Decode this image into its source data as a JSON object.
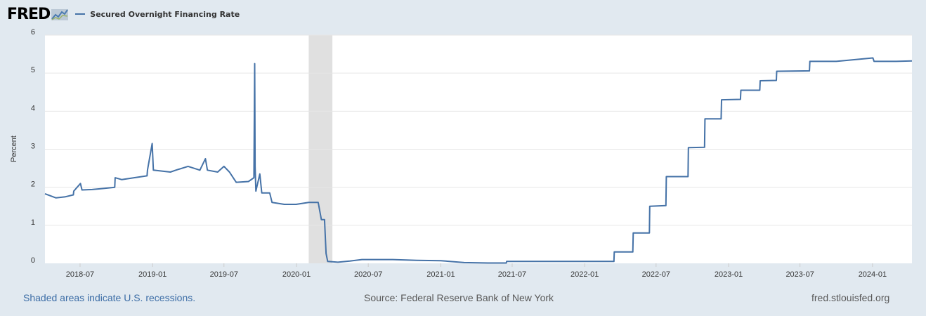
{
  "header": {
    "logo_text": "FRED",
    "logo_icon": "trend-chart-icon",
    "legend_label": "Secured Overnight Financing Rate",
    "legend_color": "#4572a7"
  },
  "chart_data": {
    "type": "line",
    "ylabel": "Percent",
    "ylim": [
      0,
      6
    ],
    "y_ticks": [
      "0",
      "1",
      "2",
      "3",
      "4",
      "5",
      "6"
    ],
    "x_ticks": [
      "2018-07",
      "2019-01",
      "2019-07",
      "2020-01",
      "2020-07",
      "2021-01",
      "2021-07",
      "2022-01",
      "2022-07",
      "2023-01",
      "2023-07",
      "2024-01"
    ],
    "grid": true,
    "recession_shading": [
      [
        "2020-02",
        "2020-04"
      ]
    ],
    "series": [
      {
        "name": "Secured Overnight Financing Rate",
        "color": "#4572a7",
        "points": [
          [
            "2018-04-03",
            1.83
          ],
          [
            "2018-05-01",
            1.72
          ],
          [
            "2018-05-25",
            1.75
          ],
          [
            "2018-06-14",
            1.8
          ],
          [
            "2018-06-15",
            1.9
          ],
          [
            "2018-07-02",
            2.1
          ],
          [
            "2018-07-06",
            1.93
          ],
          [
            "2018-08-01",
            1.94
          ],
          [
            "2018-09-01",
            1.97
          ],
          [
            "2018-09-27",
            2.0
          ],
          [
            "2018-09-28",
            2.25
          ],
          [
            "2018-10-15",
            2.2
          ],
          [
            "2018-11-15",
            2.25
          ],
          [
            "2018-12-18",
            2.3
          ],
          [
            "2018-12-19",
            2.45
          ],
          [
            "2018-12-31",
            3.15
          ],
          [
            "2019-01-03",
            2.45
          ],
          [
            "2019-02-15",
            2.4
          ],
          [
            "2019-03-01",
            2.45
          ],
          [
            "2019-04-01",
            2.55
          ],
          [
            "2019-05-01",
            2.45
          ],
          [
            "2019-05-15",
            2.75
          ],
          [
            "2019-05-20",
            2.45
          ],
          [
            "2019-06-15",
            2.4
          ],
          [
            "2019-07-01",
            2.55
          ],
          [
            "2019-07-15",
            2.4
          ],
          [
            "2019-08-01",
            2.13
          ],
          [
            "2019-09-01",
            2.15
          ],
          [
            "2019-09-15",
            2.25
          ],
          [
            "2019-09-17",
            5.25
          ],
          [
            "2019-09-18",
            2.55
          ],
          [
            "2019-09-20",
            1.9
          ],
          [
            "2019-09-30",
            2.35
          ],
          [
            "2019-10-05",
            1.85
          ],
          [
            "2019-10-25",
            1.85
          ],
          [
            "2019-10-31",
            1.6
          ],
          [
            "2019-12-01",
            1.55
          ],
          [
            "2019-12-31",
            1.55
          ],
          [
            "2020-02-01",
            1.6
          ],
          [
            "2020-02-25",
            1.6
          ],
          [
            "2020-03-04",
            1.15
          ],
          [
            "2020-03-12",
            1.15
          ],
          [
            "2020-03-16",
            0.26
          ],
          [
            "2020-03-20",
            0.05
          ],
          [
            "2020-04-15",
            0.03
          ],
          [
            "2020-05-15",
            0.06
          ],
          [
            "2020-06-15",
            0.1
          ],
          [
            "2020-07-15",
            0.1
          ],
          [
            "2020-09-01",
            0.1
          ],
          [
            "2020-11-01",
            0.08
          ],
          [
            "2021-01-01",
            0.07
          ],
          [
            "2021-03-01",
            0.02
          ],
          [
            "2021-05-01",
            0.01
          ],
          [
            "2021-06-16",
            0.01
          ],
          [
            "2021-06-17",
            0.05
          ],
          [
            "2021-09-01",
            0.05
          ],
          [
            "2021-12-01",
            0.05
          ],
          [
            "2022-03-16",
            0.05
          ],
          [
            "2022-03-17",
            0.3
          ],
          [
            "2022-05-03",
            0.3
          ],
          [
            "2022-05-04",
            0.8
          ],
          [
            "2022-06-14",
            0.8
          ],
          [
            "2022-06-15",
            1.5
          ],
          [
            "2022-07-26",
            1.52
          ],
          [
            "2022-07-27",
            2.28
          ],
          [
            "2022-09-20",
            2.28
          ],
          [
            "2022-09-21",
            3.04
          ],
          [
            "2022-11-01",
            3.05
          ],
          [
            "2022-11-02",
            3.8
          ],
          [
            "2022-12-13",
            3.8
          ],
          [
            "2022-12-14",
            4.3
          ],
          [
            "2023-01-31",
            4.31
          ],
          [
            "2023-02-01",
            4.55
          ],
          [
            "2023-03-21",
            4.55
          ],
          [
            "2023-03-22",
            4.8
          ],
          [
            "2023-05-02",
            4.81
          ],
          [
            "2023-05-03",
            5.05
          ],
          [
            "2023-07-25",
            5.06
          ],
          [
            "2023-07-26",
            5.31
          ],
          [
            "2023-10-01",
            5.31
          ],
          [
            "2024-01-02",
            5.4
          ],
          [
            "2024-01-05",
            5.31
          ],
          [
            "2024-03-01",
            5.31
          ],
          [
            "2024-04-10",
            5.32
          ]
        ]
      }
    ]
  },
  "footer": {
    "recession_note": "Shaded areas indicate U.S. recessions.",
    "source": "Source: Federal Reserve Bank of New York",
    "site": "fred.stlouisfed.org"
  }
}
